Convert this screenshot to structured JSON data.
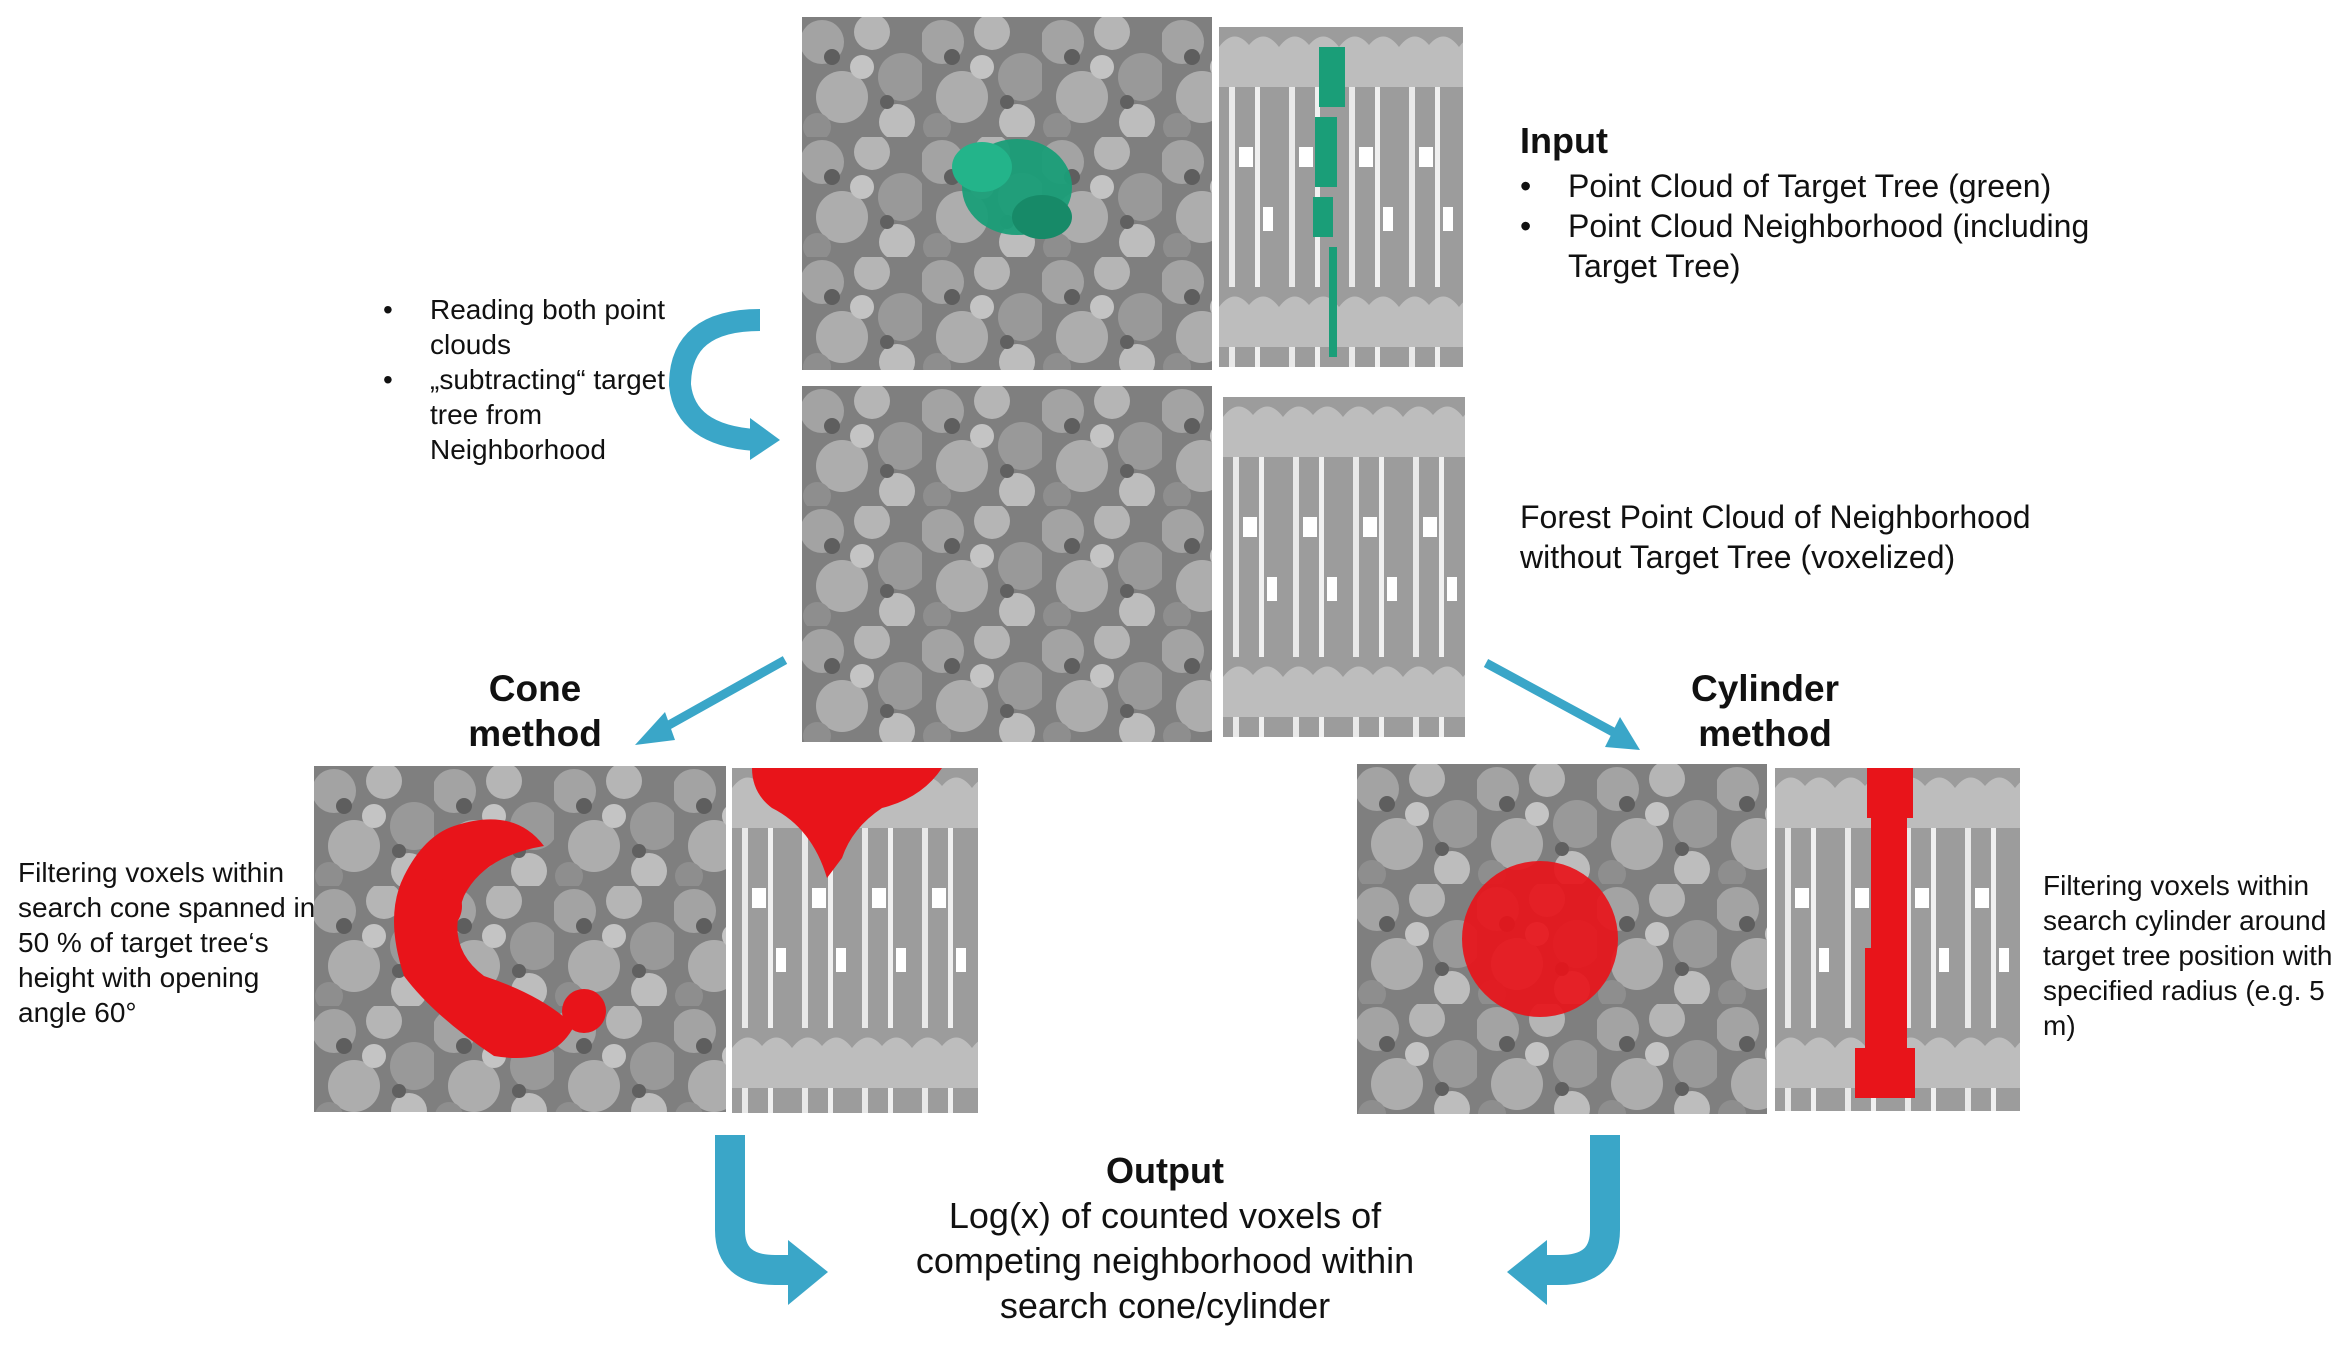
{
  "input": {
    "title": "Input",
    "bullets": [
      "Point Cloud of Target Tree (green)",
      "Point Cloud Neighborhood (including Target Tree)"
    ]
  },
  "reading_note": {
    "bullets": [
      "Reading both point clouds",
      "„subtracting“ target tree from Neighborhood"
    ]
  },
  "forest": {
    "text": "Forest Point Cloud of Neighborhood without Target Tree (voxelized)"
  },
  "cone": {
    "title_line1": "Cone",
    "title_line2": "method",
    "description": "Filtering voxels within search cone spanned in 50 % of target tree‘s height with opening angle 60°"
  },
  "cylinder": {
    "title_line1": "Cylinder",
    "title_line2": "method",
    "description": "Filtering voxels within search cylinder around target tree position with specified radius (e.g. 5 m)"
  },
  "output": {
    "title": "Output",
    "line1": "Log(x) of counted voxels of",
    "line2": "competing neighborhood within",
    "line3": "search cone/cylinder"
  },
  "colors": {
    "arrow": "#3aa6c8",
    "target_tree": "#1a9e78",
    "selection": "#e8141a",
    "canopy": "#8a8a8a"
  },
  "bullet_glyph": "•"
}
